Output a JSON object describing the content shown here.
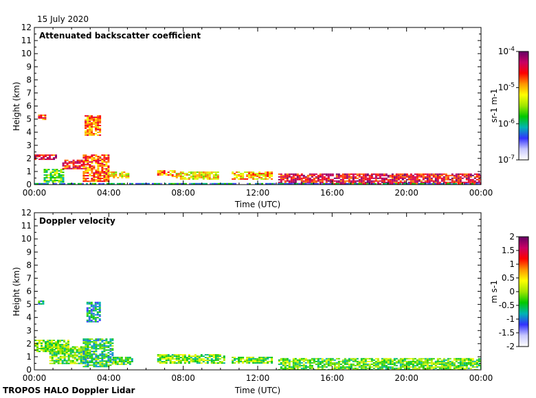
{
  "date_label": "15 July 2020",
  "footer_label": "TROPOS HALO Doppler Lidar",
  "colors": {
    "gradient": [
      "#ffffff",
      "#c8c8ff",
      "#3232ff",
      "#00b4b4",
      "#00c800",
      "#a0e600",
      "#ffff00",
      "#ff9600",
      "#ff0000",
      "#c80064",
      "#640064"
    ]
  },
  "chart_data": [
    {
      "type": "heatmap",
      "title": "Attenuated backscatter coefficient",
      "xlabel": "Time (UTC)",
      "ylabel": "Height (km)",
      "xlim": [
        0,
        24
      ],
      "ylim": [
        0,
        12
      ],
      "x_ticks": [
        "00:00",
        "04:00",
        "08:00",
        "12:00",
        "16:00",
        "20:00",
        "00:00"
      ],
      "y_ticks": [
        "0",
        "1",
        "2",
        "3",
        "4",
        "5",
        "6",
        "7",
        "8",
        "9",
        "10",
        "11",
        "12"
      ],
      "colorbar": {
        "label": "sr-1 m-1",
        "scale": "log",
        "range": [
          1e-07,
          0.0001
        ],
        "ticks": [
          {
            "value": -4,
            "base": "10",
            "exp": "-4"
          },
          {
            "value": -5,
            "base": "10",
            "exp": "-5"
          },
          {
            "value": -6,
            "base": "10",
            "exp": "-6"
          },
          {
            "value": -7,
            "base": "10",
            "exp": "-7"
          }
        ]
      },
      "regions": [
        {
          "t0": 0.2,
          "t1": 0.6,
          "h0": 5.0,
          "h1": 5.35,
          "v": 0.75
        },
        {
          "t0": 2.7,
          "t1": 3.5,
          "h0": 3.8,
          "h1": 5.3,
          "v": 0.72
        },
        {
          "t0": 0.0,
          "t1": 1.2,
          "h0": 1.9,
          "h1": 2.3,
          "v": 0.85
        },
        {
          "t0": 0.5,
          "t1": 1.5,
          "h0": 0.2,
          "h1": 1.2,
          "v": 0.45
        },
        {
          "t0": 1.5,
          "t1": 2.8,
          "h0": 1.2,
          "h1": 1.9,
          "v": 0.8
        },
        {
          "t0": 2.6,
          "t1": 4.0,
          "h0": 0.3,
          "h1": 2.3,
          "v": 0.75
        },
        {
          "t0": 4.0,
          "t1": 5.1,
          "h0": 0.5,
          "h1": 1.0,
          "v": 0.6
        },
        {
          "t0": 6.6,
          "t1": 7.6,
          "h0": 0.6,
          "h1": 1.1,
          "v": 0.7
        },
        {
          "t0": 7.6,
          "t1": 9.9,
          "h0": 0.4,
          "h1": 1.0,
          "v": 0.6
        },
        {
          "t0": 10.6,
          "t1": 12.8,
          "h0": 0.4,
          "h1": 1.0,
          "v": 0.65
        },
        {
          "t0": 13.1,
          "t1": 24.0,
          "h0": 0.0,
          "h1": 0.85,
          "v": 0.85
        },
        {
          "t0": 0.0,
          "t1": 24.0,
          "h0": 0.0,
          "h1": 0.12,
          "v": 0.3
        }
      ]
    },
    {
      "type": "heatmap",
      "title": "Doppler velocity",
      "xlabel": "Time (UTC)",
      "ylabel": "Height (km)",
      "xlim": [
        0,
        24
      ],
      "ylim": [
        0,
        12
      ],
      "x_ticks": [
        "00:00",
        "04:00",
        "08:00",
        "12:00",
        "16:00",
        "20:00",
        "00:00"
      ],
      "y_ticks": [
        "0",
        "1",
        "2",
        "3",
        "4",
        "5",
        "6",
        "7",
        "8",
        "9",
        "10",
        "11",
        "12"
      ],
      "colorbar": {
        "label": "m s-1",
        "scale": "linear",
        "range": [
          -2,
          2
        ],
        "ticks": [
          {
            "value": 2,
            "text": "2"
          },
          {
            "value": 1.5,
            "text": "1.5"
          },
          {
            "value": 1,
            "text": "1"
          },
          {
            "value": 0.5,
            "text": "0.5"
          },
          {
            "value": 0,
            "text": "0"
          },
          {
            "value": -0.5,
            "text": "-0.5"
          },
          {
            "value": -1,
            "text": "-1"
          },
          {
            "value": -1.5,
            "text": "-1.5"
          },
          {
            "value": -2,
            "text": "-2"
          }
        ]
      },
      "regions": [
        {
          "t0": 0.2,
          "t1": 0.5,
          "h0": 5.0,
          "h1": 5.3,
          "v": 0.35
        },
        {
          "t0": 2.8,
          "t1": 3.5,
          "h0": 3.7,
          "h1": 5.2,
          "v": 0.3
        },
        {
          "t0": 0.0,
          "t1": 1.8,
          "h0": 1.4,
          "h1": 2.3,
          "v": 0.48
        },
        {
          "t0": 0.8,
          "t1": 2.8,
          "h0": 0.5,
          "h1": 1.8,
          "v": 0.45
        },
        {
          "t0": 2.6,
          "t1": 4.2,
          "h0": 0.2,
          "h1": 2.4,
          "v": 0.38
        },
        {
          "t0": 4.2,
          "t1": 5.2,
          "h0": 0.4,
          "h1": 1.0,
          "v": 0.42
        },
        {
          "t0": 6.6,
          "t1": 10.2,
          "h0": 0.5,
          "h1": 1.2,
          "v": 0.46
        },
        {
          "t0": 10.6,
          "t1": 12.8,
          "h0": 0.5,
          "h1": 1.0,
          "v": 0.46
        },
        {
          "t0": 13.1,
          "t1": 24.0,
          "h0": 0.05,
          "h1": 0.9,
          "v": 0.45
        }
      ]
    }
  ]
}
